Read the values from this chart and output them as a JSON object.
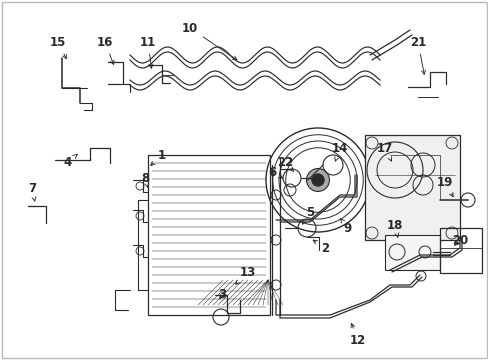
{
  "bg_color": "#ffffff",
  "line_color": "#2a2a2a",
  "fig_width": 4.89,
  "fig_height": 3.6,
  "dpi": 100,
  "border_color": "#cccccc",
  "label_fontsize": 8.5,
  "label_fontweight": "bold"
}
